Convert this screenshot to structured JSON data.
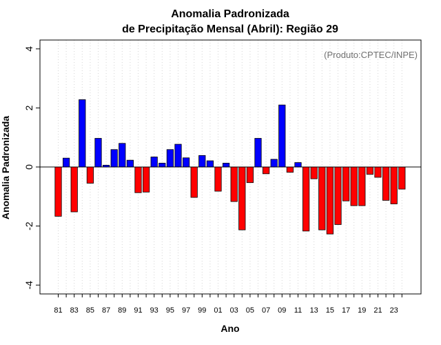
{
  "chart_data": {
    "type": "bar",
    "title_line1": "Anomalia Padronizada",
    "title_line2": "de Precipitação Mensal (Abril): Região 29",
    "xlabel": "Ano",
    "ylabel": "Anomalia Padronizada",
    "credit": "(Produto:CPTEC/INPE)",
    "ylim": [
      -4.3,
      4.3
    ],
    "yticks": [
      -4,
      -2,
      0,
      2,
      4
    ],
    "tick_years": [
      "81",
      "83",
      "85",
      "87",
      "89",
      "91",
      "93",
      "95",
      "97",
      "99",
      "01",
      "03",
      "05",
      "07",
      "09",
      "11",
      "13",
      "15",
      "17",
      "19",
      "21",
      "23"
    ],
    "categories": [
      "1981",
      "1982",
      "1983",
      "1984",
      "1985",
      "1986",
      "1987",
      "1988",
      "1989",
      "1990",
      "1991",
      "1992",
      "1993",
      "1994",
      "1995",
      "1996",
      "1997",
      "1998",
      "1999",
      "2000",
      "2001",
      "2002",
      "2003",
      "2004",
      "2005",
      "2006",
      "2007",
      "2008",
      "2009",
      "2010",
      "2011",
      "2012",
      "2013",
      "2014",
      "2015",
      "2016",
      "2017",
      "2018",
      "2019",
      "2020",
      "2021",
      "2022",
      "2023",
      "2024"
    ],
    "values": [
      -1.67,
      0.3,
      -1.52,
      2.28,
      -0.55,
      0.97,
      0.06,
      0.59,
      0.8,
      0.23,
      -0.87,
      -0.85,
      0.34,
      0.13,
      0.59,
      0.77,
      0.31,
      -1.03,
      0.39,
      0.21,
      -0.82,
      0.13,
      -1.17,
      -2.13,
      -0.53,
      0.97,
      -0.23,
      0.26,
      2.1,
      -0.18,
      0.15,
      -2.17,
      -0.4,
      -2.13,
      -2.27,
      -1.95,
      -1.15,
      -1.31,
      -1.31,
      -0.25,
      -0.35,
      -1.13,
      -1.25,
      -0.75
    ],
    "colors": {
      "positive": "#0000ff",
      "negative": "#ff0000",
      "grid": "#d3d3d3",
      "axis": "#000000"
    }
  }
}
